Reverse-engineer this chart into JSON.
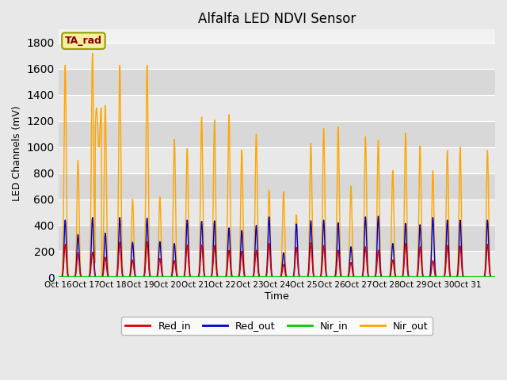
{
  "title": "Alfalfa LED NDVI Sensor",
  "ylabel": "LED Channels (mV)",
  "xlabel": "Time",
  "ylim": [
    0,
    1900
  ],
  "yticks": [
    0,
    200,
    400,
    600,
    800,
    1000,
    1200,
    1400,
    1600,
    1800
  ],
  "xtick_labels": [
    "Oct 16",
    "Oct 17",
    "Oct 18",
    "Oct 19",
    "Oct 20",
    "Oct 21",
    "Oct 22",
    "Oct 23",
    "Oct 24",
    "Oct 25",
    "Oct 26",
    "Oct 27",
    "Oct 28",
    "Oct 29",
    "Oct 30",
    "Oct 31"
  ],
  "bg_color": "#e8e8e8",
  "plot_bg": "#f2f2f2",
  "legend_label": "TA_rad",
  "series_colors": {
    "Red_in": "#dd0000",
    "Red_out": "#0000cc",
    "Nir_in": "#00cc00",
    "Nir_out": "#ffa500"
  },
  "nir_out_peak1": [
    1630,
    1720,
    1630,
    1630,
    1060,
    1230,
    1250,
    1100,
    660,
    1030,
    1155,
    1080,
    820,
    1010,
    975,
    0
  ],
  "nir_out_peak2": [
    900,
    1320,
    600,
    620,
    990,
    1210,
    980,
    670,
    480,
    1145,
    700,
    1055,
    1110,
    820,
    1000,
    975
  ],
  "red_out_peak1": [
    440,
    460,
    460,
    455,
    260,
    430,
    380,
    400,
    190,
    435,
    420,
    465,
    260,
    405,
    440,
    0
  ],
  "red_out_peak2": [
    330,
    340,
    270,
    275,
    440,
    435,
    360,
    465,
    410,
    440,
    235,
    470,
    415,
    460,
    440,
    440
  ],
  "red_in_peak1": [
    255,
    195,
    270,
    275,
    130,
    250,
    210,
    210,
    100,
    265,
    210,
    235,
    135,
    235,
    245,
    0
  ],
  "red_in_peak2": [
    190,
    155,
    135,
    145,
    250,
    245,
    200,
    260,
    230,
    245,
    115,
    210,
    260,
    130,
    240,
    255
  ],
  "nir_in_val": 3
}
